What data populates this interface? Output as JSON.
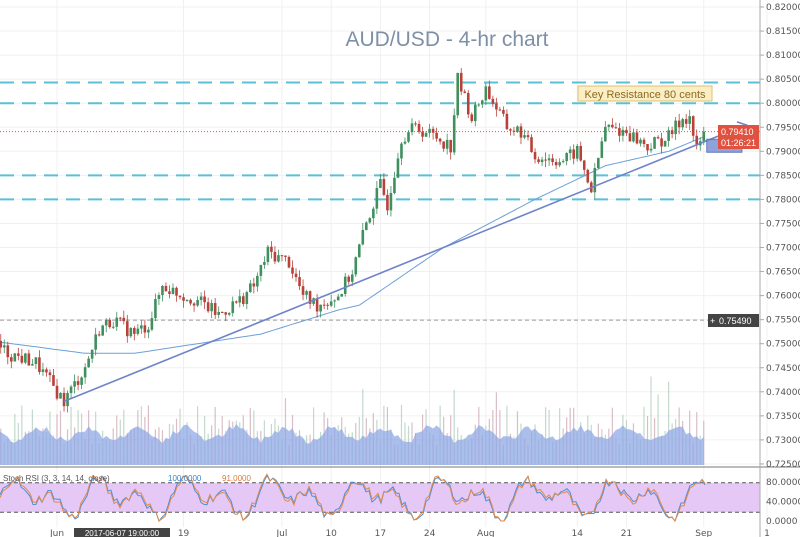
{
  "chart_data": {
    "type": "candlestick",
    "title": "AUD/USD - 4-hr chart",
    "symbol": "AUD/USD",
    "timeframe": "4-hr",
    "ylim": [
      0.725,
      0.82
    ],
    "y_ticks": [
      "0.82000",
      "0.81500",
      "0.81000",
      "0.80500",
      "0.80000",
      "0.79500",
      "0.79000",
      "0.78500",
      "0.78000",
      "0.77500",
      "0.77000",
      "0.76500",
      "0.76000",
      "0.75500",
      "0.75000",
      "0.74500",
      "0.74000",
      "0.73500",
      "0.73000",
      "0.72500"
    ],
    "x_ticks": [
      {
        "label": "Jun",
        "date": "2017-06-01"
      },
      {
        "label": "19",
        "date": "2017-06-19"
      },
      {
        "label": "Jul",
        "date": "2017-07-03"
      },
      {
        "label": "10",
        "date": "2017-07-10"
      },
      {
        "label": "17",
        "date": "2017-07-17"
      },
      {
        "label": "24",
        "date": "2017-07-24"
      },
      {
        "label": "Aug",
        "date": "2017-08-01"
      },
      {
        "label": "14",
        "date": "2017-08-14"
      },
      {
        "label": "21",
        "date": "2017-08-21"
      },
      {
        "label": "Sep",
        "date": "2017-09-01"
      },
      {
        "label": "1",
        "date": "2017-09-10"
      }
    ],
    "close_path": [
      [
        "2017-05-23",
        0.75
      ],
      [
        "2017-05-25",
        0.748
      ],
      [
        "2017-05-29",
        0.746
      ],
      [
        "2017-06-02",
        0.738
      ],
      [
        "2017-06-05",
        0.745
      ],
      [
        "2017-06-07",
        0.753
      ],
      [
        "2017-06-09",
        0.755
      ],
      [
        "2017-06-12",
        0.752
      ],
      [
        "2017-06-14",
        0.754
      ],
      [
        "2017-06-16",
        0.762
      ],
      [
        "2017-06-19",
        0.76
      ],
      [
        "2017-06-21",
        0.759
      ],
      [
        "2017-06-24",
        0.756
      ],
      [
        "2017-06-27",
        0.759
      ],
      [
        "2017-06-29",
        0.762
      ],
      [
        "2017-07-01",
        0.769
      ],
      [
        "2017-07-04",
        0.767
      ],
      [
        "2017-07-06",
        0.76
      ],
      [
        "2017-07-08",
        0.758
      ],
      [
        "2017-07-11",
        0.76
      ],
      [
        "2017-07-13",
        0.765
      ],
      [
        "2017-07-15",
        0.775
      ],
      [
        "2017-07-17",
        0.783
      ],
      [
        "2017-07-18",
        0.779
      ],
      [
        "2017-07-20",
        0.793
      ],
      [
        "2017-07-22",
        0.795
      ],
      [
        "2017-07-25",
        0.793
      ],
      [
        "2017-07-27",
        0.791
      ],
      [
        "2017-07-28",
        0.805
      ],
      [
        "2017-07-30",
        0.797
      ],
      [
        "2017-08-01",
        0.803
      ],
      [
        "2017-08-04",
        0.795
      ],
      [
        "2017-08-06",
        0.794
      ],
      [
        "2017-08-08",
        0.789
      ],
      [
        "2017-08-12",
        0.788
      ],
      [
        "2017-08-14",
        0.79
      ],
      [
        "2017-08-16",
        0.782
      ],
      [
        "2017-08-18",
        0.795
      ],
      [
        "2017-08-21",
        0.794
      ],
      [
        "2017-08-24",
        0.791
      ],
      [
        "2017-08-27",
        0.793
      ],
      [
        "2017-08-29",
        0.797
      ],
      [
        "2017-08-30",
        0.797
      ],
      [
        "2017-08-31",
        0.79
      ],
      [
        "2017-09-01",
        0.7941
      ]
    ],
    "moving_average": [
      [
        "2017-05-23",
        0.7505
      ],
      [
        "2017-06-05",
        0.748
      ],
      [
        "2017-06-12",
        0.748
      ],
      [
        "2017-06-30",
        0.752
      ],
      [
        "2017-07-11",
        0.757
      ],
      [
        "2017-07-14",
        0.758
      ],
      [
        "2017-07-26",
        0.77
      ],
      [
        "2017-08-08",
        0.78
      ],
      [
        "2017-08-18",
        0.787
      ],
      [
        "2017-08-27",
        0.79
      ],
      [
        "2017-09-01",
        0.793
      ]
    ],
    "trendline": {
      "start": [
        "2017-06-02",
        0.738
      ],
      "end": [
        "2017-09-07",
        0.7955
      ]
    },
    "horizontal_levels": [
      0.8043,
      0.8,
      0.785,
      0.78
    ],
    "projection_box": {
      "from": "2017-09-01",
      "to": "2017-09-06",
      "low": 0.7898,
      "high": 0.7925
    },
    "annotation": "Key Resistance 80 cents",
    "last_price": "0.79410",
    "countdown": "01:26:21",
    "crosshair_price": "0.75490",
    "crosshair_date": "2017-06-07 19:00:00",
    "stoch_rsi": {
      "label": "Stoch RSI (3, 3, 14, 14, close)",
      "k_value": "100.0000",
      "d_value": "91.0000",
      "ticks": [
        "80.0000",
        "40.0000",
        "0.0000"
      ],
      "upper_band": 80,
      "lower_band": 20
    },
    "colors": {
      "up": "#3f8f5f",
      "down": "#b8413a",
      "level": "#5bc0d6",
      "trend": "#6f83c8",
      "ma": "#6ca0d8",
      "last_price": "#e0523f",
      "stoch_band": "#e6c8f7",
      "volume": "#8fa8e6"
    }
  }
}
